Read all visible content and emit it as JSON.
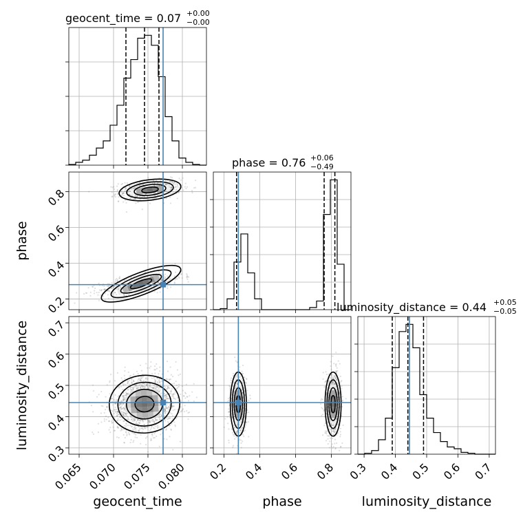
{
  "chart_data": {
    "type": "corner",
    "parameters": [
      "geocent_time",
      "phase",
      "luminosity_distance"
    ],
    "truths": {
      "geocent_time": 0.0772,
      "phase": 0.28,
      "luminosity_distance": 0.445
    },
    "titles": {
      "geocent_time": {
        "label": "geocent_time = 0.07",
        "sup": "+0.00",
        "sub": "−0.00"
      },
      "phase": {
        "label": "phase = 0.76",
        "sup": "+0.06",
        "sub": "−0.49"
      },
      "luminosity_distance": {
        "label": "luminosity_distance = 0.44",
        "sup": "+0.05",
        "sub": "−0.05"
      }
    },
    "ranges": {
      "geocent_time": [
        0.0635,
        0.0835
      ],
      "phase": [
        0.14,
        0.91
      ],
      "luminosity_distance": [
        0.28,
        0.72
      ]
    },
    "ticks": {
      "geocent_time": [
        "0.065",
        "0.070",
        "0.075",
        "0.080"
      ],
      "phase": [
        "0.2",
        "0.4",
        "0.6",
        "0.8"
      ],
      "luminosity_distance": [
        "0.3",
        "0.4",
        "0.5",
        "0.6",
        "0.7"
      ]
    },
    "quantiles": {
      "geocent_time": [
        0.0718,
        0.0745,
        0.0766
      ],
      "phase": [
        0.27,
        0.76,
        0.82
      ],
      "luminosity_distance": [
        0.39,
        0.44,
        0.49
      ]
    },
    "histograms": {
      "geocent_time": {
        "edges": [
          0.0635,
          0.0645,
          0.0655,
          0.0665,
          0.0675,
          0.0685,
          0.0695,
          0.0705,
          0.0715,
          0.0725,
          0.0735,
          0.0745,
          0.0755,
          0.0765,
          0.0775,
          0.0785,
          0.0795,
          0.0805,
          0.0815,
          0.0825,
          0.0835
        ],
        "counts": [
          0.5,
          2,
          3.5,
          7,
          12,
          17,
          28,
          42,
          61,
          74,
          89,
          91,
          84,
          62,
          34,
          17,
          5,
          2,
          0.5,
          0
        ]
      },
      "phase": {
        "edges": [
          0.14,
          0.1785,
          0.217,
          0.2555,
          0.294,
          0.3325,
          0.371,
          0.4095,
          0.448,
          0.4865,
          0.525,
          0.5635,
          0.602,
          0.6405,
          0.679,
          0.7175,
          0.756,
          0.7945,
          0.833,
          0.8715,
          0.91
        ],
        "counts": [
          0,
          1,
          10,
          44,
          70,
          34,
          10,
          0,
          0,
          0,
          0,
          0,
          0,
          0,
          2,
          8,
          88,
          120,
          42,
          0
        ]
      },
      "luminosity_distance": {
        "edges": [
          0.28,
          0.302,
          0.324,
          0.346,
          0.368,
          0.39,
          0.412,
          0.434,
          0.456,
          0.478,
          0.5,
          0.522,
          0.544,
          0.566,
          0.588,
          0.61,
          0.632,
          0.654,
          0.676,
          0.698,
          0.72
        ],
        "counts": [
          0,
          0.5,
          2,
          8,
          20,
          48,
          68,
          72,
          59,
          33,
          20,
          12,
          7,
          4,
          3,
          1,
          0.5,
          0,
          0,
          0
        ]
      }
    },
    "grid": true
  }
}
